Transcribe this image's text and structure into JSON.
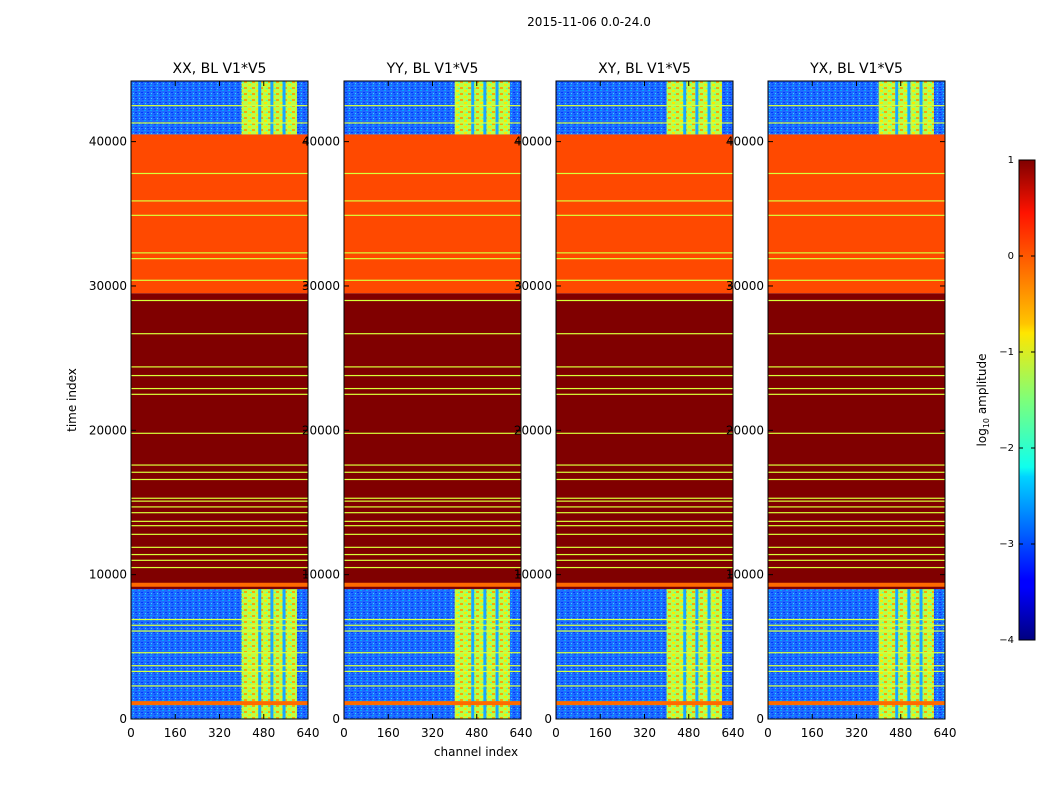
{
  "chart_data": {
    "type": "heatmap",
    "suptitle": "2015-11-06 0.0-24.0",
    "xlabel": "channel index",
    "ylabel": "time index",
    "xlim": [
      0,
      640
    ],
    "ylim": [
      0,
      44200
    ],
    "xticks": [
      0,
      160,
      320,
      480,
      640
    ],
    "yticks": [
      0,
      10000,
      20000,
      30000,
      40000
    ],
    "panels": [
      {
        "title": "XX, BL V1*V5",
        "polarization": "XX"
      },
      {
        "title": "YY, BL V1*V5",
        "polarization": "YY"
      },
      {
        "title": "XY, BL V1*V5",
        "polarization": "XY"
      },
      {
        "title": "YX, BL V1*V5",
        "polarization": "YX"
      }
    ],
    "colorbar": {
      "label": "log10 amplitude",
      "label_main": "log",
      "label_sub": "10",
      "label_rest": " amplitude",
      "range": [
        -4,
        1
      ],
      "ticks": [
        "1",
        "0",
        "−1",
        "−2",
        "−3",
        "−4"
      ],
      "tick_values": [
        1,
        0,
        -1,
        -2,
        -3,
        -4
      ],
      "colormap": "jet"
    },
    "regions": [
      {
        "t_start": 0,
        "t_end": 9000,
        "level": "noise",
        "noise_log": -2.6,
        "band_log": -0.7,
        "band_channels": [
          400,
          600
        ]
      },
      {
        "t_start": 9000,
        "t_end": 29500,
        "level_log": 1.0
      },
      {
        "t_start": 29500,
        "t_end": 40500,
        "level_log": 0.1
      },
      {
        "t_start": 40500,
        "t_end": 44200,
        "level": "noise",
        "noise_log": -2.6,
        "band_log": -0.7,
        "band_channels": [
          400,
          600
        ]
      }
    ],
    "line_times": [
      1100,
      2300,
      3300,
      3700,
      4600,
      6100,
      6500,
      6900,
      9300,
      10500,
      11000,
      11400,
      11900,
      12800,
      13400,
      13700,
      14300,
      14700,
      15100,
      15300,
      16600,
      17100,
      17600,
      19800,
      22500,
      22900,
      23800,
      24400,
      26700,
      29000,
      30400,
      31900,
      32300,
      34900,
      35900,
      37800,
      41300,
      42500
    ],
    "thick_line_times": [
      1100,
      9300
    ]
  }
}
